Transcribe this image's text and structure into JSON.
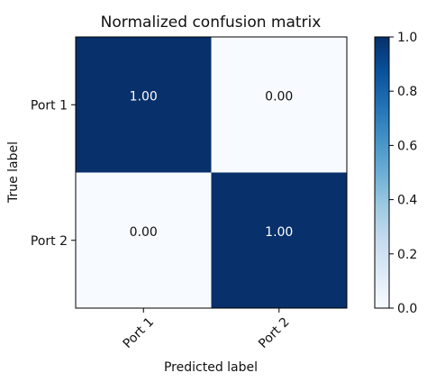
{
  "chart_data": {
    "type": "heatmap",
    "title": "Normalized confusion matrix",
    "xlabel": "Predicted label",
    "ylabel": "True label",
    "x_categories": [
      "Port 1",
      "Port 2"
    ],
    "y_categories": [
      "Port 1",
      "Port 2"
    ],
    "values": [
      [
        1.0,
        0.0
      ],
      [
        0.0,
        1.0
      ]
    ],
    "value_labels": [
      [
        "1.00",
        "0.00"
      ],
      [
        "0.00",
        "1.00"
      ]
    ],
    "colormap": "Blues",
    "colorbar": {
      "range": [
        0,
        1
      ],
      "ticks": [
        "0.0",
        "0.2",
        "0.4",
        "0.6",
        "0.8",
        "1.0"
      ]
    },
    "colors": {
      "high": "#08306b",
      "low": "#f7fbff",
      "text_on_dark": "#ffffff",
      "text_on_light": "#111111"
    }
  }
}
